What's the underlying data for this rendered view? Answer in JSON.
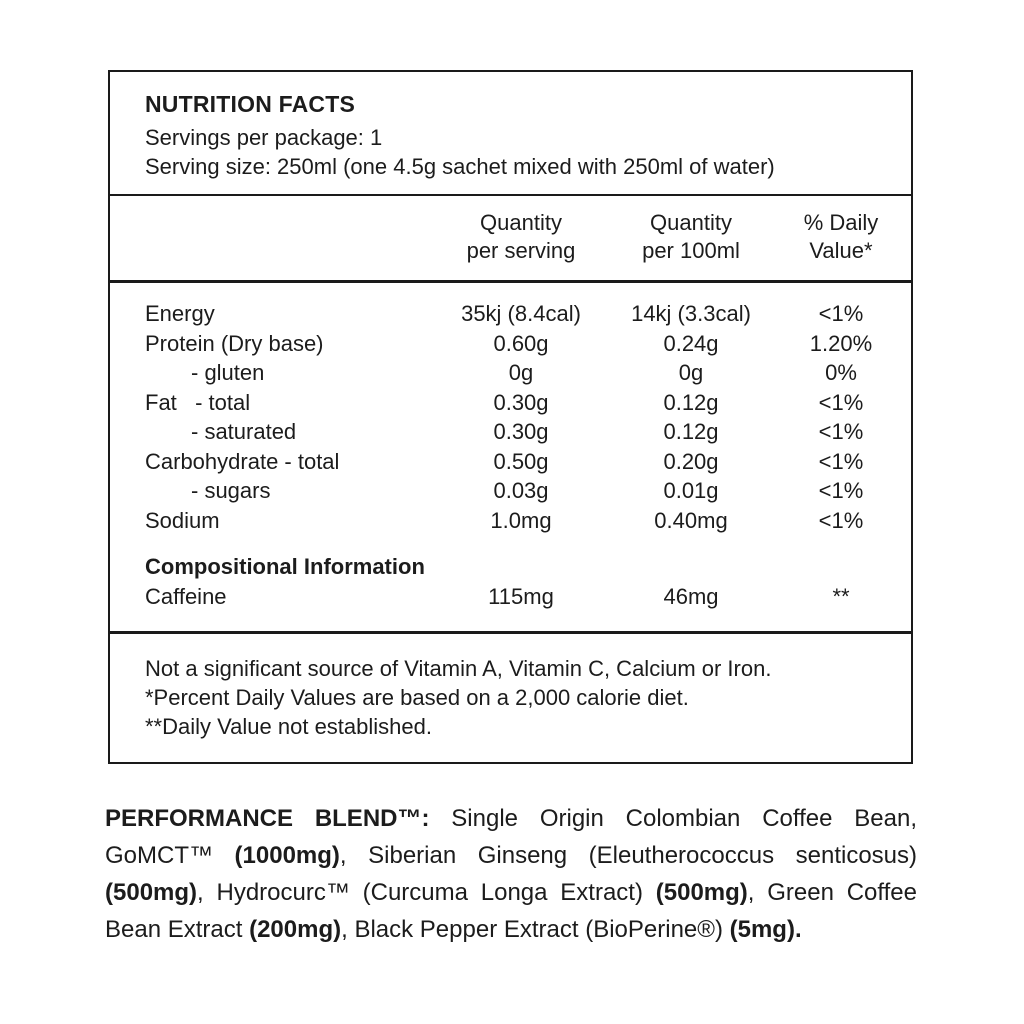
{
  "label": {
    "title": "NUTRITION FACTS",
    "servings_line": "Servings per package: 1",
    "serving_size_line": "Serving size: 250ml (one 4.5g sachet mixed with 250ml of water)",
    "columns": [
      {
        "line1": "Quantity",
        "line2": "per serving"
      },
      {
        "line1": "Quantity",
        "line2": "per 100ml"
      },
      {
        "line1": "% Daily",
        "line2": "Value*"
      }
    ],
    "rows": [
      {
        "label": "Energy",
        "per_serving": "35kj (8.4cal)",
        "per_100ml": "14kj (3.3cal)",
        "daily_value": "<1%"
      },
      {
        "label": "Protein (Dry base)",
        "per_serving": "0.60g",
        "per_100ml": "0.24g",
        "daily_value": "1.20%"
      },
      {
        "label": "- gluten",
        "per_serving": "0g",
        "per_100ml": "0g",
        "daily_value": "0%"
      },
      {
        "label": "Fat   - total",
        "per_serving": "0.30g",
        "per_100ml": "0.12g",
        "daily_value": "<1%"
      },
      {
        "label": "- saturated",
        "per_serving": "0.30g",
        "per_100ml": "0.12g",
        "daily_value": "<1%"
      },
      {
        "label": "Carbohydrate - total",
        "per_serving": "0.50g",
        "per_100ml": "0.20g",
        "daily_value": "<1%"
      },
      {
        "label": "- sugars",
        "per_serving": "0.03g",
        "per_100ml": "0.01g",
        "daily_value": "<1%"
      },
      {
        "label": "Sodium",
        "per_serving": "1.0mg",
        "per_100ml": "0.40mg",
        "daily_value": "<1%"
      }
    ],
    "compositional_header": "Compositional Information",
    "compositional_rows": [
      {
        "label": "Caffeine",
        "per_serving": "115mg",
        "per_100ml": "46mg",
        "daily_value": "**"
      }
    ],
    "footnotes": [
      "Not a significant source of Vitamin A, Vitamin C, Calcium or Iron.",
      "*Percent Daily Values are based on a 2,000 calorie diet.",
      "**Daily Value not established."
    ]
  },
  "performance_blend": {
    "segments": [
      {
        "text": "PERFORMANCE BLEND™: ",
        "bold": true
      },
      {
        "text": "Single Origin Colombian Coffee Bean, GoMCT™ ",
        "bold": false
      },
      {
        "text": "(1000mg)",
        "bold": true
      },
      {
        "text": ", Siberian Ginseng (Eleutherococcus senticosus) ",
        "bold": false
      },
      {
        "text": "(500mg)",
        "bold": true
      },
      {
        "text": ", Hydrocurc™ (Curcuma Longa Extract) ",
        "bold": false
      },
      {
        "text": "(500mg)",
        "bold": true
      },
      {
        "text": ", Green Coffee Bean Extract ",
        "bold": false
      },
      {
        "text": "(200mg)",
        "bold": true
      },
      {
        "text": ", Black Pepper Extract (BioPerine®) ",
        "bold": false
      },
      {
        "text": "(5mg).",
        "bold": true
      }
    ]
  },
  "colors": {
    "text": "#1c1c1c",
    "border": "#1a1a1a",
    "background": "#ffffff"
  }
}
